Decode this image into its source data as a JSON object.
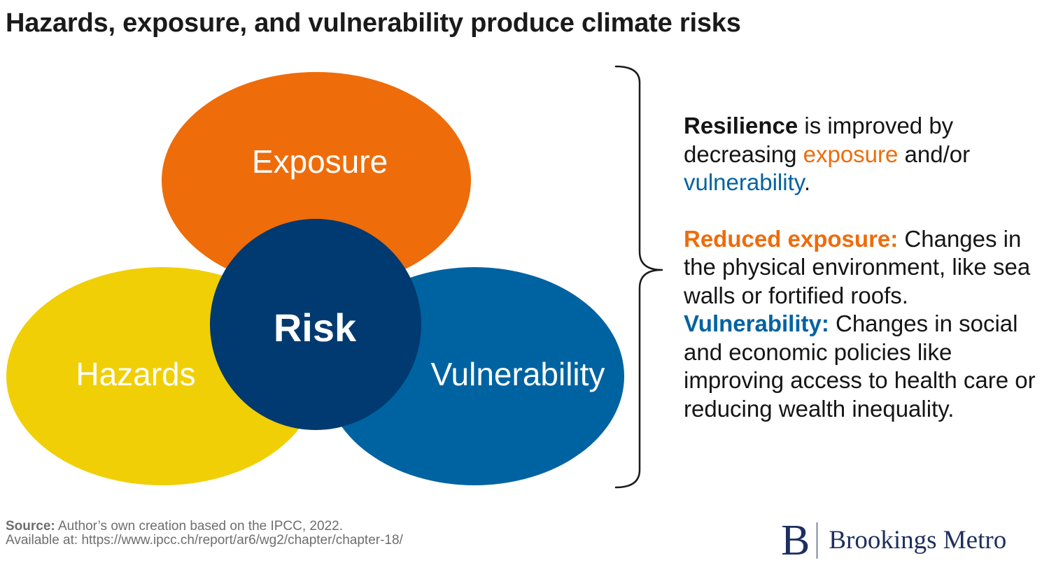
{
  "title": "Hazards, exposure, and vulnerability produce climate risks",
  "diagram": {
    "circles": [
      {
        "label": "Exposure",
        "color": "#ee6c0a"
      },
      {
        "label": "Hazards",
        "color": "#f0cf06"
      },
      {
        "label": "Vulnerability",
        "color": "#0063a1"
      },
      {
        "label": "Risk",
        "color": "#003a70"
      }
    ]
  },
  "explanation": {
    "resilience": {
      "bold": "Resilience",
      "text1": " is improved by decreasing ",
      "exposure_word": "exposure",
      "text2": " and/or ",
      "vulnerability_word": "vulnerability",
      "end": "."
    },
    "reduced_exposure": {
      "label": "Reduced exposure:",
      "text": " Changes in the physical environment, like sea walls or fortified roofs."
    },
    "vulnerability": {
      "label": "Vulnerability:",
      "text": " Changes in social and economic policies like improving access to health care or reducing wealth inequality."
    }
  },
  "source": {
    "label": "Source:",
    "text": " Author’s own creation based on the IPCC, 2022.",
    "line2": "Available at: https://www.ipcc.ch/report/ar6/wg2/chapter/chapter-18/"
  },
  "brand": {
    "mark": "B",
    "name": "Brookings Metro"
  },
  "colors": {
    "orange": "#ee6c0a",
    "yellow": "#f0cf06",
    "blue": "#0063a1",
    "navy": "#003a70",
    "brand_navy": "#1d2f5e"
  }
}
